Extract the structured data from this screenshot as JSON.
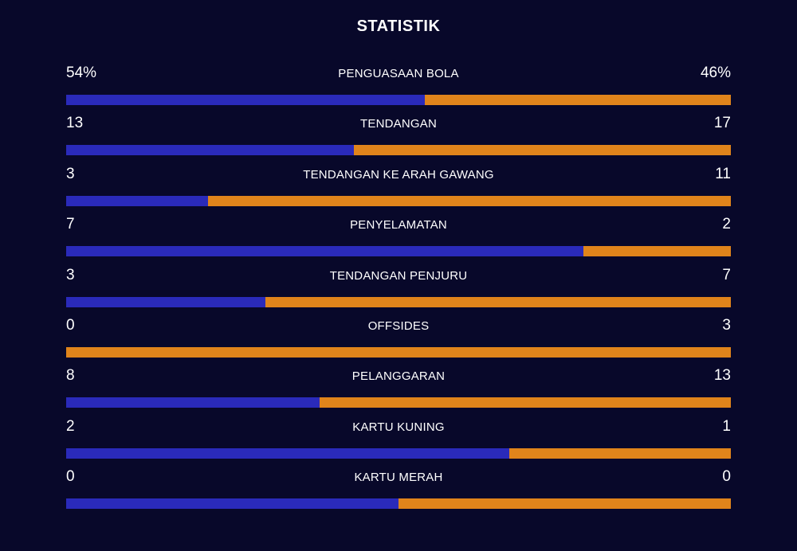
{
  "title": "STATISTIK",
  "colors": {
    "background": "#08082a",
    "home": "#2a2aba",
    "away": "#e0841b",
    "text": "#ffffff"
  },
  "stats": [
    {
      "label": "PENGUASAAN BOLA",
      "left": "54%",
      "right": "46%",
      "left_share": 0.54
    },
    {
      "label": "TENDANGAN",
      "left": "13",
      "right": "17",
      "left_share": 0.433
    },
    {
      "label": "TENDANGAN KE ARAH GAWANG",
      "left": "3",
      "right": "11",
      "left_share": 0.214
    },
    {
      "label": "PENYELAMATAN",
      "left": "7",
      "right": "2",
      "left_share": 0.778
    },
    {
      "label": "TENDANGAN PENJURU",
      "left": "3",
      "right": "7",
      "left_share": 0.3
    },
    {
      "label": "OFFSIDES",
      "left": "0",
      "right": "3",
      "left_share": 0.0
    },
    {
      "label": "PELANGGARAN",
      "left": "8",
      "right": "13",
      "left_share": 0.381
    },
    {
      "label": "KARTU KUNING",
      "left": "2",
      "right": "1",
      "left_share": 0.667
    },
    {
      "label": "KARTU MERAH",
      "left": "0",
      "right": "0",
      "left_share": 0.5
    }
  ]
}
